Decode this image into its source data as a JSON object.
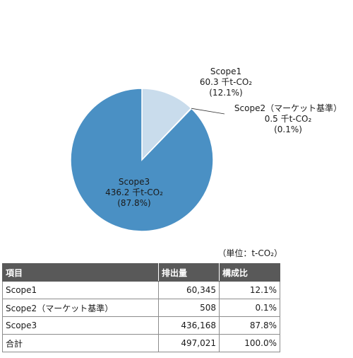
{
  "chart_data": {
    "type": "pie",
    "unit_note": "（単位：t-CO₂）",
    "slices": [
      {
        "name": "Scope1",
        "value": 60.3,
        "value_text": "60.3 千t-CO₂",
        "percent": 12.1,
        "percent_text": "(12.1%)",
        "color": "#c9dcec"
      },
      {
        "name": "Scope2（マーケット基準）",
        "value": 0.5,
        "value_text": "0.5 千t-CO₂",
        "percent": 0.1,
        "percent_text": "(0.1%)",
        "color": "#c9dcec"
      },
      {
        "name": "Scope3",
        "value": 436.2,
        "value_text": "436.2 千t-CO₂",
        "percent": 87.8,
        "percent_text": "(87.8%)",
        "color": "#4a90c4"
      }
    ]
  },
  "table": {
    "headers": [
      "項目",
      "排出量",
      "構成比"
    ],
    "rows": [
      [
        "Scope1",
        "60,345",
        "12.1%"
      ],
      [
        "Scope2（マーケット基準）",
        "508",
        "0.1%"
      ],
      [
        "Scope3",
        "436,168",
        "87.8%"
      ],
      [
        "合計",
        "497,021",
        "100.0%"
      ]
    ]
  }
}
